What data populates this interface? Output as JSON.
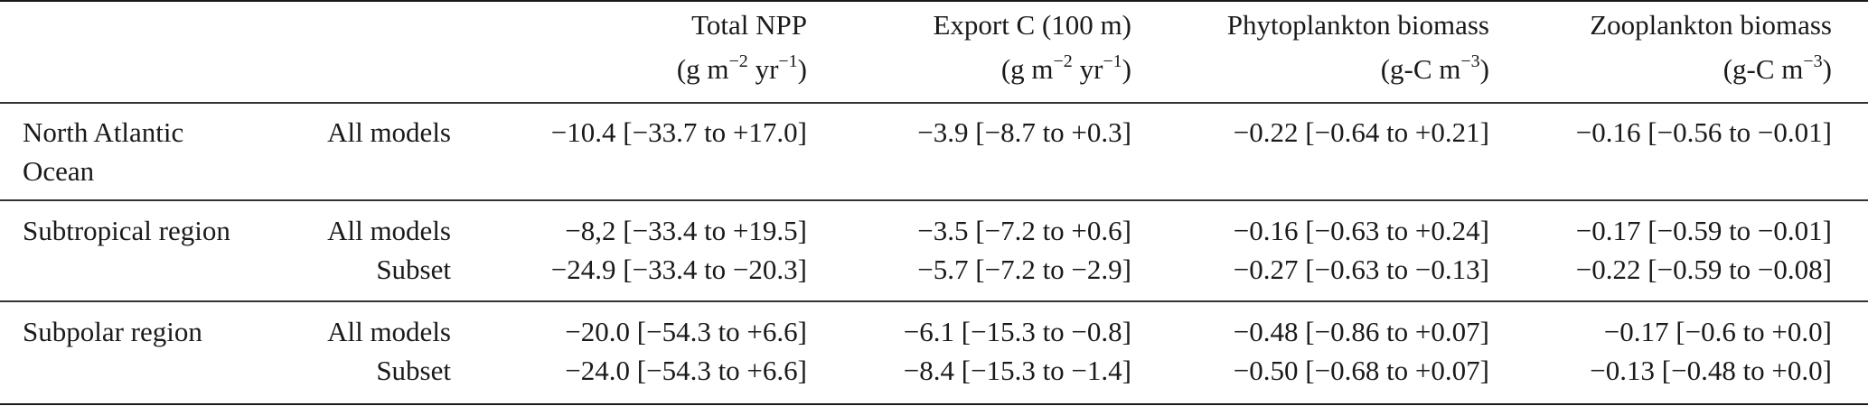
{
  "columns": [
    {
      "title": "Total NPP",
      "unit_main": "(g m",
      "unit_sup1": "−2",
      "unit_mid": " yr",
      "unit_sup2": "−1",
      "unit_end": ")"
    },
    {
      "title": "Export C (100 m)",
      "unit_main": "(g m",
      "unit_sup1": "−2",
      "unit_mid": " yr",
      "unit_sup2": "−1",
      "unit_end": ")"
    },
    {
      "title": "Phytoplankton biomass",
      "unit_main": "(g-C m",
      "unit_sup1": "−3",
      "unit_mid": "",
      "unit_sup2": "",
      "unit_end": ")"
    },
    {
      "title": "Zooplankton biomass",
      "unit_main": "(g-C m",
      "unit_sup1": "−3",
      "unit_mid": "",
      "unit_sup2": "",
      "unit_end": ")"
    }
  ],
  "groups": [
    {
      "region_line1": "North Atlantic",
      "region_line2": "Ocean",
      "rows": [
        {
          "model": "All models",
          "values": [
            "−10.4 [−33.7 to +17.0]",
            "−3.9 [−8.7 to +0.3]",
            "−0.22 [−0.64 to +0.21]",
            "−0.16 [−0.56 to −0.01]"
          ]
        }
      ]
    },
    {
      "region_line1": "Subtropical region",
      "rows": [
        {
          "model": "All models",
          "values": [
            "−8,2 [−33.4 to +19.5]",
            "−3.5 [−7.2 to +0.6]",
            "−0.16 [−0.63 to +0.24]",
            "−0.17 [−0.59 to −0.01]"
          ]
        },
        {
          "model": "Subset",
          "values": [
            "−24.9 [−33.4 to −20.3]",
            "−5.7 [−7.2 to −2.9]",
            "−0.27 [−0.63 to −0.13]",
            "−0.22 [−0.59 to −0.08]"
          ]
        }
      ]
    },
    {
      "region_line1": "Subpolar region",
      "rows": [
        {
          "model": "All models",
          "values": [
            "−20.0 [−54.3 to +6.6]",
            "−6.1 [−15.3 to −0.8]",
            "−0.48 [−0.86 to +0.07]",
            "−0.17 [−0.6 to +0.0]"
          ]
        },
        {
          "model": "Subset",
          "values": [
            "−24.0 [−54.3 to +6.6]",
            "−8.4 [−15.3 to −1.4]",
            "−0.50 [−0.68 to +0.07]",
            "−0.13 [−0.48 to +0.0]"
          ]
        }
      ]
    }
  ]
}
